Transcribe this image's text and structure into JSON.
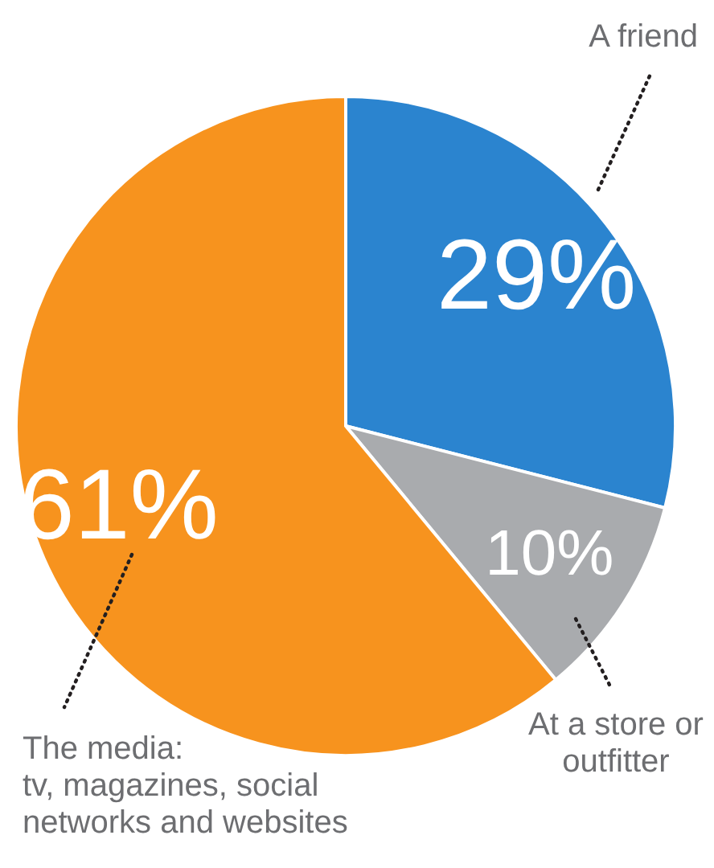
{
  "chart_data": {
    "type": "pie",
    "categories": [
      "A friend",
      "At a store or outfitter",
      "The media:\ntv, magazines, social networks and websites"
    ],
    "values": [
      29,
      10,
      61
    ],
    "colors": [
      "#2b84cf",
      "#a9abae",
      "#f7931e"
    ],
    "value_labels": [
      "29%",
      "10%",
      "61%"
    ]
  }
}
